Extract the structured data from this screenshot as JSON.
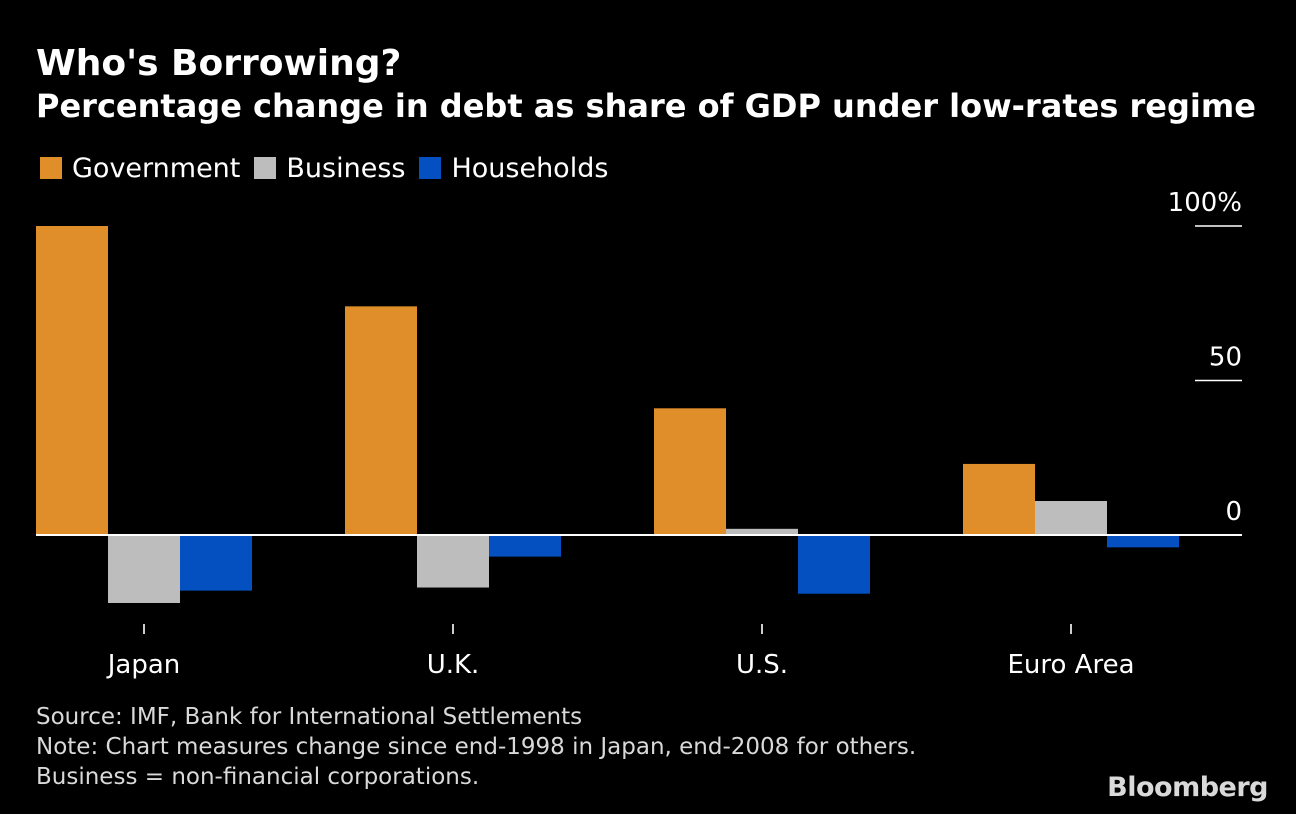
{
  "chart_data": {
    "type": "bar",
    "title": "Who's Borrowing?",
    "subtitle": "Percentage change in debt as share of GDP under low-rates regime",
    "categories": [
      "Japan",
      "U.K.",
      "U.S.",
      "Euro Area"
    ],
    "series": [
      {
        "name": "Government",
        "color": "#E08E29",
        "values": [
          100,
          74,
          41,
          23
        ]
      },
      {
        "name": "Business",
        "color": "#BDBDBD",
        "values": [
          -22,
          -17,
          2,
          11
        ]
      },
      {
        "name": "Households",
        "color": "#0450C0",
        "values": [
          -18,
          -7,
          -19,
          -4
        ]
      }
    ],
    "yticks": [
      {
        "value": 100,
        "label": "100%"
      },
      {
        "value": 50,
        "label": "50"
      },
      {
        "value": 0,
        "label": "0"
      }
    ],
    "ylim": [
      -30,
      100
    ],
    "legend": "top-left",
    "grid": false
  },
  "footer": {
    "source": "Source: IMF, Bank for International Settlements",
    "note": "Note: Chart measures change since end-1998 in Japan, end-2008 for others.",
    "business_note": "Business = non-financial corporations."
  },
  "logo": "Bloomberg"
}
